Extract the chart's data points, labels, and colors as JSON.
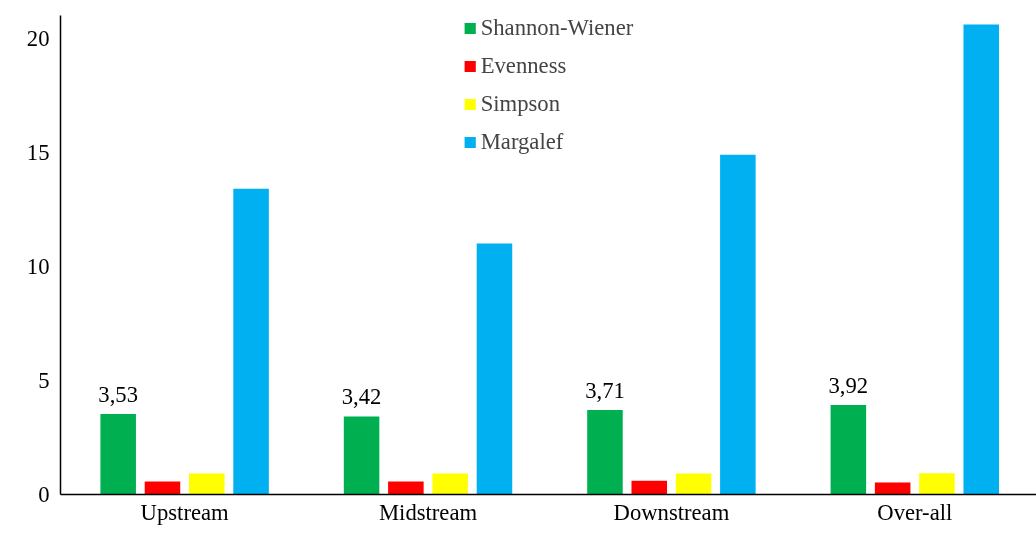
{
  "chart_data": {
    "type": "bar",
    "categories": [
      "Upstream",
      "Midstream",
      "Downstream",
      "Over-all"
    ],
    "series": [
      {
        "name": "Shannon-Wiener",
        "color": "#00b050",
        "values": [
          3.53,
          3.42,
          3.71,
          3.92
        ],
        "value_labels": [
          "3,53",
          "3,42",
          "3,71",
          "3,92"
        ]
      },
      {
        "name": "Evenness",
        "color": "#ff0000",
        "values": [
          0.57,
          0.57,
          0.6,
          0.53
        ]
      },
      {
        "name": "Simpson",
        "color": "#ffff00",
        "values": [
          0.92,
          0.92,
          0.92,
          0.93
        ]
      },
      {
        "name": "Margalef",
        "color": "#00b0f0",
        "values": [
          13.4,
          11.0,
          14.9,
          20.6
        ]
      }
    ],
    "ylim": [
      0,
      21
    ],
    "yticks": [
      0,
      5,
      10,
      15,
      20
    ],
    "grid": false,
    "legend": "top"
  }
}
